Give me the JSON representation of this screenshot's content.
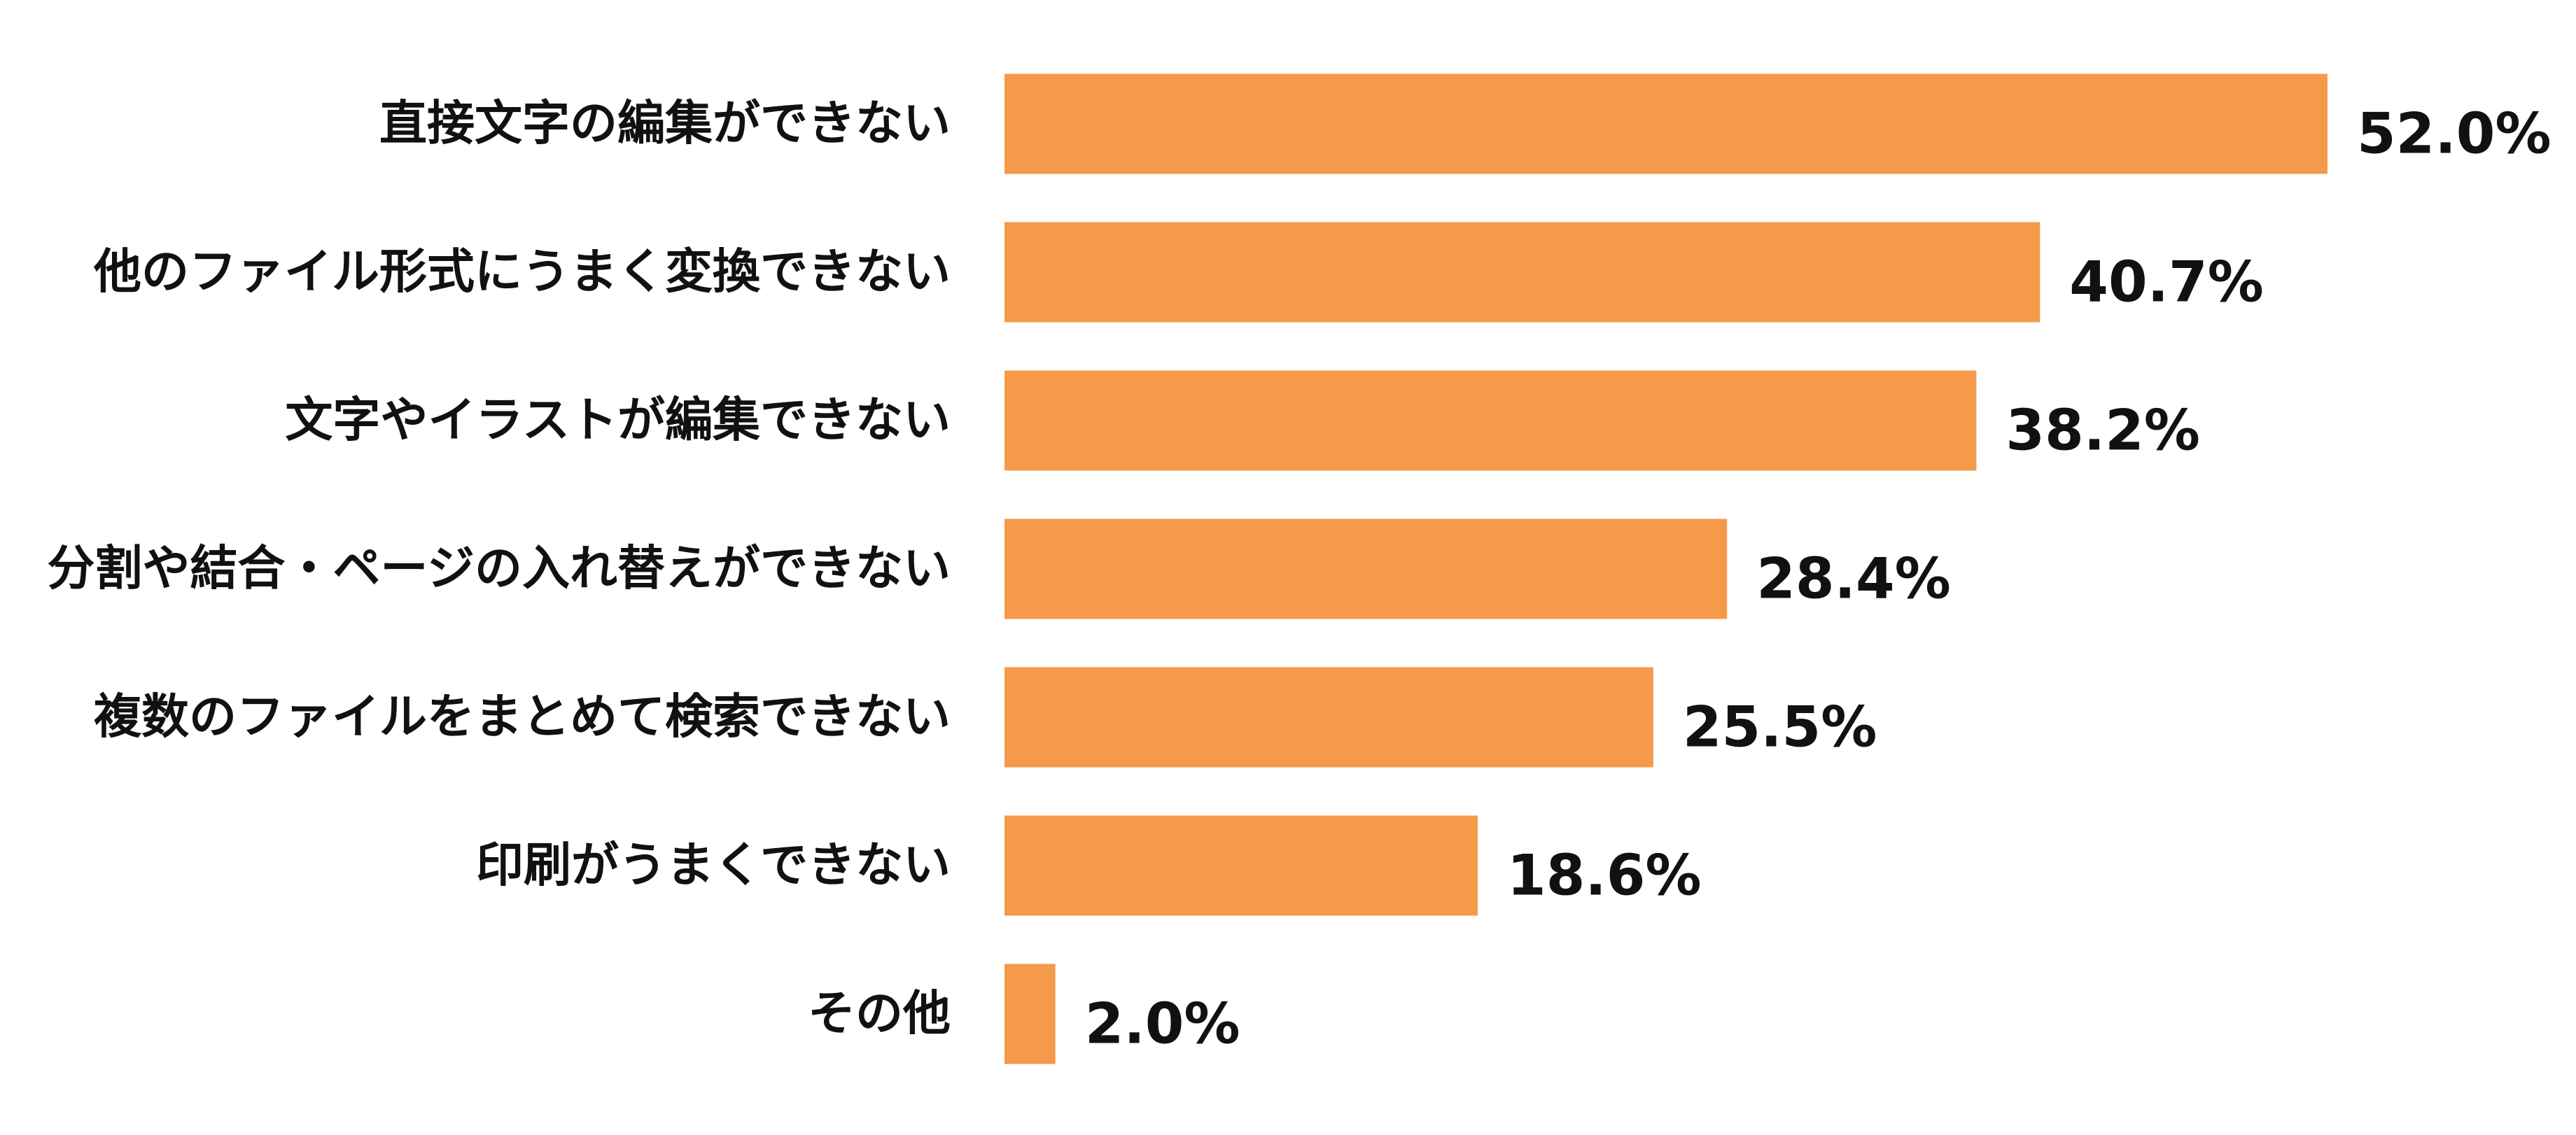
{
  "chart_data": {
    "type": "bar",
    "orientation": "horizontal",
    "title": "",
    "xlabel": "",
    "ylabel": "",
    "categories": [
      "直接文字の編集ができない",
      "他のファイル形式にうまく変換できない",
      "文字やイラストが編集できない",
      "分割や結合・ページの入れ替えができない",
      "複数のファイルをまとめて検索できない",
      "印刷がうまくできない",
      "その他"
    ],
    "values": [
      52.0,
      40.7,
      38.2,
      28.4,
      25.5,
      18.6,
      2.0
    ],
    "value_labels": [
      "52.0%",
      "40.7%",
      "38.2%",
      "28.4%",
      "25.5%",
      "18.6%",
      "2.0%"
    ],
    "unit": "%",
    "xlim": [
      0,
      52.0
    ],
    "grid": false,
    "legend": "none",
    "bar_color": "#F5994A"
  }
}
